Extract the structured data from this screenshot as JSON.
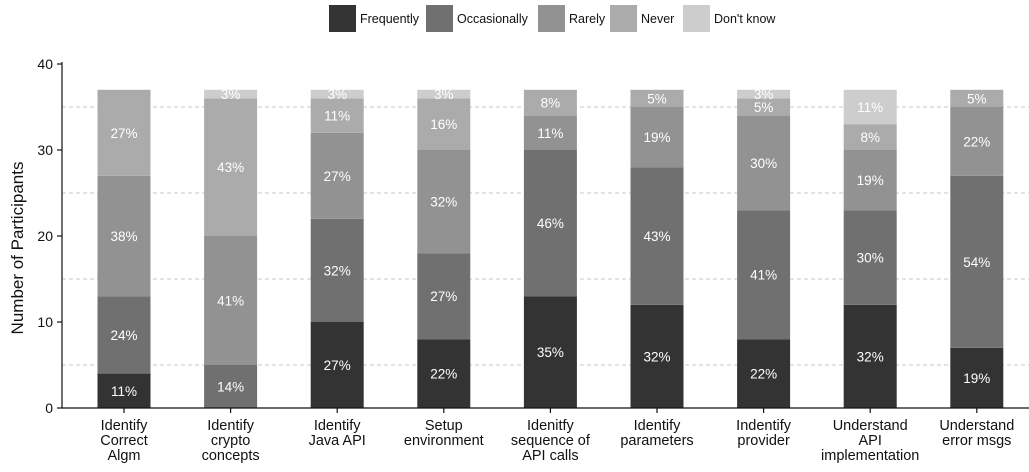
{
  "chart_data": {
    "type": "bar",
    "stacked": true,
    "ylabel": "Number of Participants",
    "xlabel": "",
    "ylim": [
      0,
      40
    ],
    "yticks": [
      0,
      10,
      20,
      30,
      40
    ],
    "grid": "horizontal dashed at 5, 15, 25, 35",
    "legend_position": "top-center",
    "categories": [
      [
        "Identify",
        "Correct",
        "Algm"
      ],
      [
        "Identify",
        "crypto",
        "concepts"
      ],
      [
        "Identify",
        "Java API"
      ],
      [
        "Setup",
        "environment"
      ],
      [
        "Idenitfy",
        "sequence of",
        "API calls"
      ],
      [
        "Identify",
        "parameters"
      ],
      [
        "Indentify",
        "provider"
      ],
      [
        "Understand",
        "API",
        "implementation"
      ],
      [
        "Understand",
        "error msgs"
      ]
    ],
    "series": [
      {
        "name": "Frequently",
        "color": "#333333",
        "text_color": "#ffffff",
        "values": [
          4,
          0,
          10,
          8,
          13,
          12,
          8,
          12,
          7
        ],
        "labels": [
          "11%",
          "",
          "27%",
          "22%",
          "35%",
          "32%",
          "22%",
          "32%",
          "19%"
        ]
      },
      {
        "name": "Occasionally",
        "color": "#707070",
        "text_color": "#ffffff",
        "values": [
          9,
          5,
          12,
          10,
          17,
          16,
          15,
          11,
          20
        ],
        "labels": [
          "24%",
          "14%",
          "32%",
          "27%",
          "46%",
          "43%",
          "41%",
          "30%",
          "54%"
        ]
      },
      {
        "name": "Rarely",
        "color": "#929292",
        "text_color": "#ffffff",
        "values": [
          14,
          15,
          10,
          12,
          4,
          7,
          11,
          7,
          8
        ],
        "labels": [
          "38%",
          "41%",
          "27%",
          "32%",
          "11%",
          "19%",
          "30%",
          "19%",
          "22%"
        ]
      },
      {
        "name": "Never",
        "color": "#ababab",
        "text_color": "#ffffff",
        "values": [
          10,
          16,
          4,
          6,
          3,
          2,
          2,
          3,
          2
        ],
        "labels": [
          "27%",
          "43%",
          "11%",
          "16%",
          "8%",
          "5%",
          "5%",
          "8%",
          "5%"
        ]
      },
      {
        "name": "Don't know",
        "color": "#cdcdcd",
        "text_color": "#ffffff",
        "values": [
          0,
          1,
          1,
          1,
          0,
          0,
          1,
          4,
          0
        ],
        "labels": [
          "",
          "3%",
          "3%",
          "3%",
          "",
          "",
          "3%",
          "11%",
          ""
        ]
      }
    ]
  }
}
